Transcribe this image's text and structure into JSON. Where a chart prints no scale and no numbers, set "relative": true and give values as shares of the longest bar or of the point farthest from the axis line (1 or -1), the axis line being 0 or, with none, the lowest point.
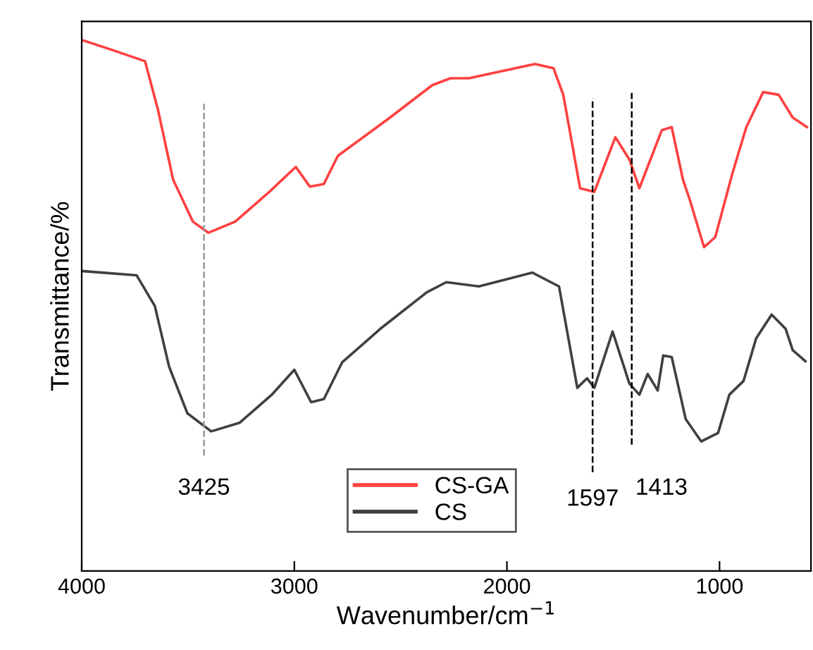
{
  "chart_data": {
    "type": "line",
    "relative": true,
    "xlabel": "Wavenumber/cm$^{−1}$",
    "ylabel": "Transmittance/%",
    "xlim": [
      4000,
      570
    ],
    "xticks": [
      4000,
      3000,
      2000,
      1000
    ],
    "grid": false,
    "legend": "bottom",
    "line_style": "solid",
    "marker": "none",
    "tick_labels": "x",
    "series": [
      {
        "name": "CS-GA",
        "color": "#ff4040",
        "x": [
          4000,
          3854,
          3702,
          3642,
          3570,
          3477,
          3404,
          3278,
          3126,
          2993,
          2927,
          2861,
          2795,
          2550,
          2351,
          2265,
          2179,
          1868,
          1781,
          1735,
          1656,
          1589,
          1490,
          1424,
          1377,
          1325,
          1272,
          1225,
          1172,
          1139,
          1073,
          1020,
          940,
          874,
          795,
          722,
          656,
          589
        ],
        "values": [
          1.0,
          0.981,
          0.96,
          0.87,
          0.737,
          0.658,
          0.637,
          0.658,
          0.711,
          0.761,
          0.724,
          0.729,
          0.782,
          0.854,
          0.915,
          0.928,
          0.928,
          0.955,
          0.947,
          0.897,
          0.721,
          0.714,
          0.817,
          0.775,
          0.721,
          0.775,
          0.83,
          0.836,
          0.737,
          0.698,
          0.61,
          0.629,
          0.748,
          0.836,
          0.902,
          0.897,
          0.854,
          0.836
        ]
      },
      {
        "name": "CS",
        "color": "#404040",
        "x": [
          4000,
          3742,
          3656,
          3589,
          3503,
          3391,
          3258,
          3106,
          3000,
          2921,
          2861,
          2775,
          2596,
          2377,
          2285,
          2132,
          1881,
          1755,
          1669,
          1623,
          1589,
          1503,
          1424,
          1377,
          1338,
          1291,
          1265,
          1225,
          1159,
          1086,
          1007,
          954,
          887,
          828,
          755,
          689,
          656,
          596
        ],
        "values": [
          0.565,
          0.557,
          0.499,
          0.385,
          0.297,
          0.263,
          0.279,
          0.332,
          0.379,
          0.318,
          0.324,
          0.393,
          0.456,
          0.525,
          0.544,
          0.536,
          0.562,
          0.536,
          0.345,
          0.363,
          0.345,
          0.451,
          0.353,
          0.332,
          0.371,
          0.34,
          0.406,
          0.403,
          0.286,
          0.244,
          0.26,
          0.332,
          0.358,
          0.438,
          0.483,
          0.456,
          0.416,
          0.395
        ]
      }
    ],
    "ref_lines": [
      {
        "axis": "x",
        "value": 3425,
        "label": "3425",
        "color": "#999999",
        "line_style": "dashed"
      },
      {
        "axis": "x",
        "value": 1597,
        "label": "1597",
        "color": "#000000",
        "line_style": "dashed"
      },
      {
        "axis": "x",
        "value": 1413,
        "label": "1413",
        "color": "#000000",
        "line_style": "dashed"
      }
    ]
  }
}
